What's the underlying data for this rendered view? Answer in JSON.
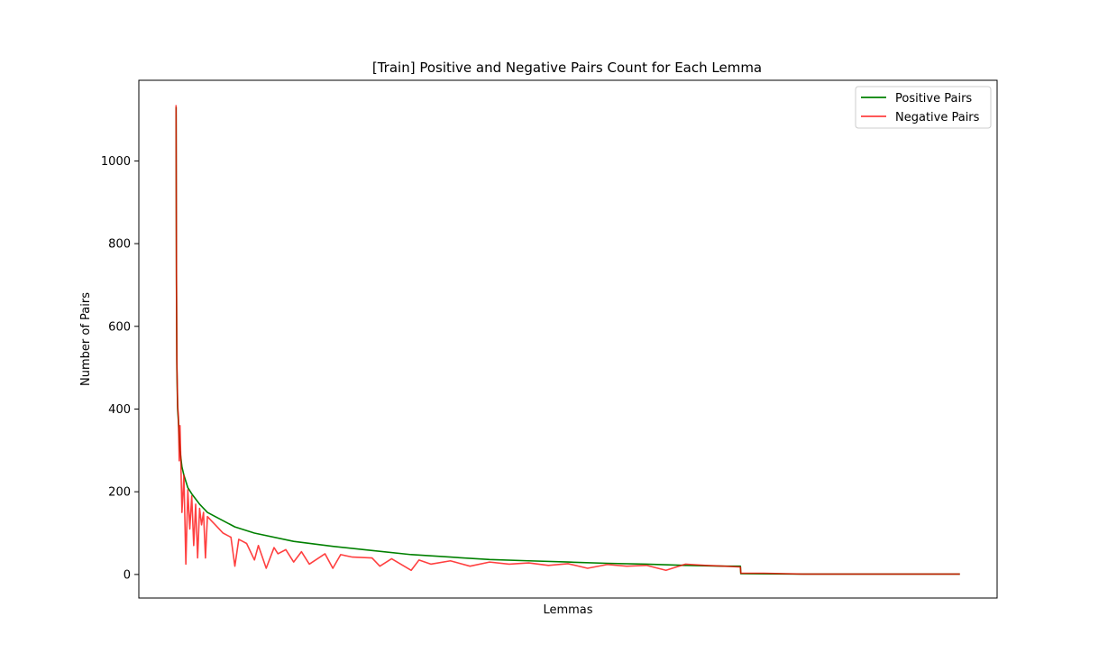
{
  "chart_data": {
    "type": "line",
    "title": "[Train] Positive and Negative Pairs Count for Each Lemma",
    "xlabel": "Lemmas",
    "ylabel": "Number of Pairs",
    "x_ticks": [],
    "y_ticks": [
      0,
      200,
      400,
      600,
      800,
      1000
    ],
    "xlim": [
      -95,
      2095
    ],
    "ylim": [
      -57,
      1195
    ],
    "grid": false,
    "legend_position": "top-right",
    "series": [
      {
        "name": "Positive Pairs",
        "color": "#008000",
        "x": [
          0,
          1,
          2,
          4,
          6,
          10,
          15,
          20,
          30,
          40,
          60,
          80,
          100,
          150,
          200,
          300,
          400,
          500,
          600,
          700,
          800,
          900,
          1000,
          1100,
          1200,
          1300,
          1400,
          1440,
          1441,
          1600,
          1800,
          2000
        ],
        "y": [
          1130,
          700,
          500,
          400,
          370,
          300,
          260,
          240,
          210,
          195,
          170,
          150,
          140,
          115,
          100,
          80,
          68,
          58,
          48,
          42,
          36,
          33,
          30,
          27,
          25,
          22,
          20,
          20,
          2,
          1,
          1,
          1
        ]
      },
      {
        "name": "Negative Pairs",
        "color": "#ff0000",
        "x": [
          0,
          1,
          2,
          4,
          6,
          8,
          10,
          12,
          15,
          20,
          25,
          30,
          35,
          40,
          45,
          50,
          55,
          60,
          65,
          70,
          75,
          80,
          90,
          100,
          110,
          120,
          130,
          140,
          150,
          160,
          170,
          180,
          200,
          210,
          230,
          250,
          260,
          280,
          300,
          320,
          340,
          380,
          400,
          420,
          450,
          500,
          520,
          550,
          600,
          620,
          650,
          700,
          750,
          800,
          850,
          900,
          950,
          1000,
          1050,
          1100,
          1150,
          1200,
          1250,
          1300,
          1350,
          1400,
          1440,
          1441,
          1500,
          1600,
          1800,
          2000
        ],
        "y": [
          1135,
          720,
          520,
          410,
          380,
          275,
          360,
          280,
          150,
          240,
          25,
          205,
          110,
          190,
          70,
          170,
          40,
          160,
          120,
          150,
          40,
          140,
          130,
          120,
          110,
          100,
          95,
          90,
          20,
          85,
          80,
          75,
          35,
          70,
          15,
          65,
          50,
          60,
          30,
          55,
          25,
          50,
          15,
          48,
          42,
          40,
          20,
          38,
          10,
          35,
          25,
          33,
          20,
          30,
          25,
          28,
          22,
          26,
          15,
          24,
          20,
          22,
          10,
          25,
          22,
          20,
          18,
          3,
          3,
          1,
          1,
          1
        ]
      }
    ]
  }
}
